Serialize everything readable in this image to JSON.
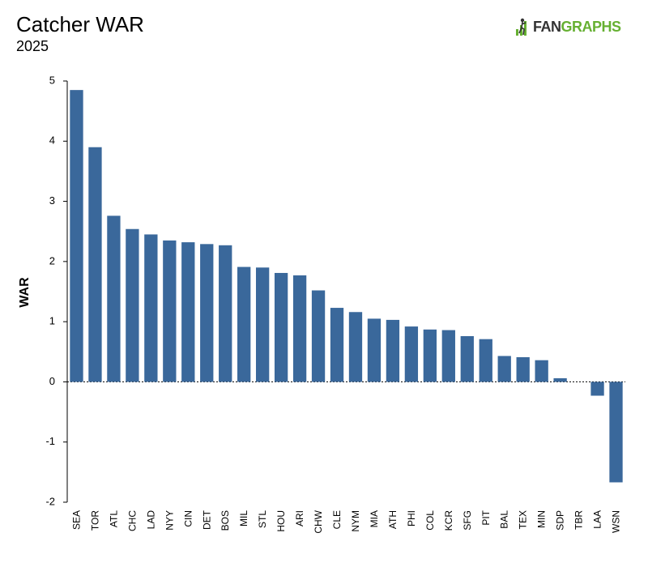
{
  "header": {
    "title": "Catcher WAR",
    "subtitle": "2025"
  },
  "logo": {
    "text_left": "FAN",
    "text_right": "GRAPHS",
    "mark_icon": "fangraphs-bars-icon",
    "color_dark": "#333333",
    "color_green": "#66b032"
  },
  "chart_data": {
    "type": "bar",
    "ylabel": "WAR",
    "xlabel": "",
    "ylim": [
      -2,
      5
    ],
    "yticks": [
      5,
      4,
      3,
      2,
      1,
      0,
      -1,
      -2
    ],
    "grid": false,
    "bar_color": "#3a689b",
    "zero_line": "dotted",
    "categories": [
      "SEA",
      "TOR",
      "ATL",
      "CHC",
      "LAD",
      "NYY",
      "CIN",
      "DET",
      "BOS",
      "MIL",
      "STL",
      "HOU",
      "ARI",
      "CHW",
      "CLE",
      "NYM",
      "MIA",
      "ATH",
      "PHI",
      "COL",
      "KCR",
      "SFG",
      "PIT",
      "BAL",
      "TEX",
      "MIN",
      "SDP",
      "TBR",
      "LAA",
      "WSN"
    ],
    "values": [
      4.85,
      3.9,
      2.76,
      2.54,
      2.45,
      2.35,
      2.32,
      2.29,
      2.27,
      1.91,
      1.9,
      1.81,
      1.77,
      1.52,
      1.23,
      1.16,
      1.05,
      1.03,
      0.92,
      0.87,
      0.86,
      0.76,
      0.71,
      0.43,
      0.41,
      0.36,
      0.06,
      0.0,
      -0.23,
      -1.67
    ]
  }
}
